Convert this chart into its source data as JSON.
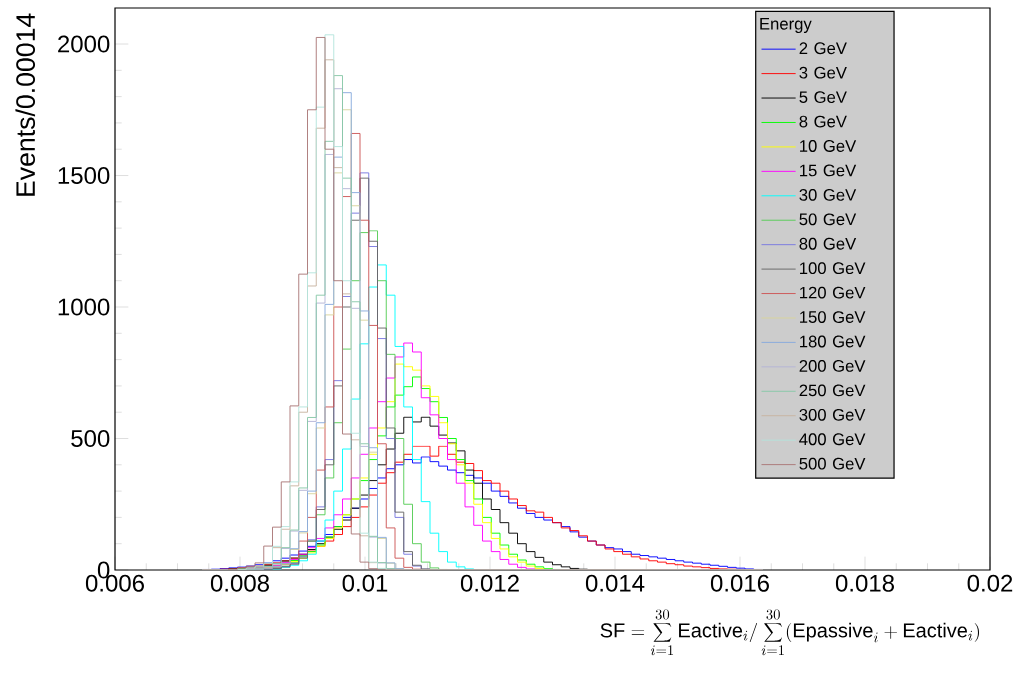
{
  "chart_data": {
    "type": "histogram",
    "xlabel": "\\mathrm{SF} = \\sum_{i=1}^{30}\\mathrm{Eactive}_{i}/\\sum_{i=1}^{30}(\\mathrm{Epassive}_{i}+\\mathrm{Eactive}_{i})",
    "ylabel": "Events/0.00014",
    "legend_title": "Energy",
    "legend": "top right",
    "xlim": [
      0.006,
      0.02
    ],
    "ylim": [
      0,
      2137
    ],
    "xticks": [
      0.006,
      0.008,
      0.01,
      0.012,
      0.014,
      0.016,
      0.018,
      0.02
    ],
    "yticks": [
      0,
      500,
      1000,
      1500,
      2000
    ],
    "bins": [
      0.0074,
      0.00754,
      0.00768,
      0.00782,
      0.00796,
      0.0081,
      0.00824,
      0.00838,
      0.00852,
      0.00866,
      0.0088,
      0.00894,
      0.00908,
      0.00922,
      0.00936,
      0.0095,
      0.00964,
      0.00978,
      0.00992,
      0.01006,
      0.0102,
      0.01034,
      0.01048,
      0.01062,
      0.01076,
      0.0109,
      0.01104,
      0.01118,
      0.01132,
      0.01146,
      0.0116,
      0.01174,
      0.01188,
      0.01202,
      0.01216,
      0.0123,
      0.01244,
      0.01258,
      0.01272,
      0.01286,
      0.013,
      0.01314,
      0.01328,
      0.01342,
      0.01356,
      0.0137,
      0.01384,
      0.01398,
      0.01412,
      0.01426,
      0.0144,
      0.01454,
      0.01468,
      0.01482,
      0.01496,
      0.0151,
      0.01524,
      0.01538,
      0.01552,
      0.01566,
      0.0158,
      0.01594,
      0.01608,
      0.01622,
      0.01636
    ],
    "series": [
      {
        "name": "2 GeV",
        "color": "#0000ff",
        "values": [
          2,
          3,
          5,
          8,
          11,
          15,
          20,
          27,
          35,
          45,
          57,
          72,
          90,
          110,
          135,
          165,
          200,
          235,
          270,
          310,
          350,
          385,
          400,
          420,
          407,
          430,
          412,
          395,
          380,
          370,
          360,
          350,
          330,
          300,
          280,
          255,
          235,
          215,
          200,
          190,
          180,
          165,
          145,
          125,
          110,
          95,
          85,
          80,
          70,
          60,
          55,
          50,
          45,
          40,
          35,
          30,
          26,
          22,
          18,
          14,
          10,
          7,
          4,
          2
        ]
      },
      {
        "name": "3 GeV",
        "color": "#ff0000",
        "values": [
          0,
          1,
          3,
          5,
          8,
          11,
          15,
          20,
          27,
          35,
          45,
          57,
          72,
          90,
          110,
          135,
          165,
          200,
          240,
          285,
          330,
          370,
          410,
          440,
          471,
          471,
          433,
          471,
          440,
          410,
          405,
          378,
          340,
          330,
          300,
          270,
          245,
          225,
          220,
          200,
          180,
          160,
          150,
          130,
          110,
          95,
          80,
          70,
          60,
          50,
          42,
          35,
          30,
          24,
          20,
          15,
          12,
          9,
          6,
          4,
          3,
          2,
          1,
          1
        ]
      },
      {
        "name": "5 GeV",
        "color": "#000000",
        "values": [
          0,
          0,
          2,
          4,
          6,
          9,
          13,
          18,
          25,
          34,
          45,
          60,
          78,
          100,
          125,
          155,
          190,
          235,
          285,
          340,
          400,
          460,
          520,
          581,
          563,
          581,
          547,
          513,
          483,
          453,
          380,
          330,
          270,
          230,
          180,
          140,
          100,
          70,
          48,
          30,
          20,
          12,
          6,
          3,
          1,
          0,
          0,
          0,
          0,
          0,
          0,
          0,
          0,
          0,
          0,
          0,
          0,
          0,
          0,
          0,
          0,
          0,
          0,
          0
        ]
      },
      {
        "name": "8 GeV",
        "color": "#00ff00",
        "values": [
          0,
          0,
          0,
          2,
          4,
          6,
          9,
          13,
          18,
          26,
          36,
          50,
          70,
          95,
          125,
          165,
          210,
          270,
          340,
          420,
          510,
          620,
          665,
          697,
          734,
          690,
          640,
          580,
          500,
          420,
          340,
          270,
          200,
          140,
          95,
          60,
          38,
          22,
          12,
          5,
          2,
          0,
          0,
          0,
          0,
          0,
          0,
          0,
          0,
          0,
          0,
          0,
          0,
          0,
          0,
          0,
          0,
          0,
          0,
          0,
          0,
          0,
          0,
          0
        ]
      },
      {
        "name": "10 GeV",
        "color": "#ffff00",
        "values": [
          0,
          0,
          0,
          0,
          2,
          4,
          7,
          10,
          15,
          22,
          32,
          45,
          65,
          90,
          120,
          160,
          210,
          270,
          350,
          440,
          540,
          640,
          783,
          773,
          760,
          700,
          660,
          560,
          480,
          400,
          330,
          250,
          180,
          120,
          80,
          50,
          30,
          15,
          6,
          2,
          0,
          0,
          0,
          0,
          0,
          0,
          0,
          0,
          0,
          0,
          0,
          0,
          0,
          0,
          0,
          0,
          0,
          0,
          0,
          0,
          0,
          0,
          0,
          0
        ]
      },
      {
        "name": "15 GeV",
        "color": "#ff00ff",
        "values": [
          0,
          0,
          0,
          0,
          2,
          5,
          8,
          12,
          18,
          28,
          40,
          60,
          85,
          120,
          160,
          210,
          270,
          350,
          440,
          540,
          640,
          730,
          810,
          863,
          829,
          655,
          590,
          500,
          420,
          330,
          240,
          170,
          110,
          70,
          40,
          22,
          10,
          4,
          0,
          0,
          0,
          0,
          0,
          0,
          0,
          0,
          0,
          0,
          0,
          0,
          0,
          0,
          0,
          0,
          0,
          0,
          0,
          0,
          0,
          0,
          0,
          0,
          0,
          0
        ]
      },
      {
        "name": "30 GeV",
        "color": "#00ffff",
        "values": [
          0,
          0,
          0,
          0,
          0,
          0,
          0,
          0,
          4,
          10,
          18,
          35,
          60,
          110,
          190,
          300,
          460,
          650,
          860,
          1076,
          1160,
          1045,
          850,
          620,
          420,
          260,
          140,
          70,
          30,
          12,
          4,
          0,
          0,
          0,
          0,
          0,
          0,
          0,
          0,
          0,
          0,
          0,
          0,
          0,
          0,
          0,
          0,
          0,
          0,
          0,
          0,
          0,
          0,
          0,
          0,
          0,
          0,
          0,
          0,
          0,
          0,
          0,
          0,
          0
        ]
      },
      {
        "name": "50 GeV",
        "color": "#55cc55",
        "values": [
          0,
          0,
          0,
          0,
          0,
          0,
          0,
          3,
          8,
          15,
          28,
          55,
          110,
          210,
          350,
          560,
          840,
          1100,
          1283,
          1290,
          1100,
          820,
          500,
          250,
          100,
          30,
          8,
          2,
          0,
          0,
          0,
          0,
          0,
          0,
          0,
          0,
          0,
          0,
          0,
          0,
          0,
          0,
          0,
          0,
          0,
          0,
          0,
          0,
          0,
          0,
          0,
          0,
          0,
          0,
          0,
          0,
          0,
          0,
          0,
          0,
          0,
          0,
          0,
          0
        ]
      },
      {
        "name": "80 GeV",
        "color": "#7777e0",
        "values": [
          0,
          0,
          0,
          0,
          0,
          0,
          0,
          3,
          7,
          13,
          25,
          50,
          115,
          240,
          420,
          720,
          1040,
          1357,
          1510,
          1230,
          880,
          500,
          200,
          60,
          15,
          3,
          0,
          0,
          0,
          0,
          0,
          0,
          0,
          0,
          0,
          0,
          0,
          0,
          0,
          0,
          0,
          0,
          0,
          0,
          0,
          0,
          0,
          0,
          0,
          0,
          0,
          0,
          0,
          0,
          0,
          0,
          0,
          0,
          0,
          0,
          0,
          0,
          0,
          0
        ]
      },
      {
        "name": "100 GeV",
        "color": "#666666",
        "values": [
          0,
          0,
          0,
          0,
          0,
          0,
          0,
          3,
          6,
          12,
          22,
          45,
          110,
          230,
          400,
          700,
          1000,
          1330,
          1490,
          1250,
          920,
          540,
          220,
          70,
          18,
          4,
          0,
          0,
          0,
          0,
          0,
          0,
          0,
          0,
          0,
          0,
          0,
          0,
          0,
          0,
          0,
          0,
          0,
          0,
          0,
          0,
          0,
          0,
          0,
          0,
          0,
          0,
          0,
          0,
          0,
          0,
          0,
          0,
          0,
          0,
          0,
          0,
          0,
          0
        ]
      },
      {
        "name": "120 GeV",
        "color": "#cc5555",
        "values": [
          0,
          0,
          0,
          0,
          0,
          0,
          3,
          6,
          12,
          22,
          45,
          110,
          200,
          380,
          620,
          1000,
          1420,
          1660,
          1330,
          930,
          480,
          160,
          45,
          10,
          3,
          0,
          0,
          0,
          0,
          0,
          0,
          0,
          0,
          0,
          0,
          0,
          0,
          0,
          0,
          0,
          0,
          0,
          0,
          0,
          0,
          0,
          0,
          0,
          0,
          0,
          0,
          0,
          0,
          0,
          0,
          0,
          0,
          0,
          0,
          0,
          0,
          0,
          0,
          0
        ]
      },
      {
        "name": "150 GeV",
        "color": "#d8d49c",
        "values": [
          0,
          0,
          0,
          0,
          0,
          0,
          3,
          7,
          13,
          23,
          78,
          141,
          290,
          540,
          970,
          1510,
          1750,
          1385,
          950,
          448,
          120,
          26,
          5,
          0,
          0,
          0,
          0,
          0,
          0,
          0,
          0,
          0,
          0,
          0,
          0,
          0,
          0,
          0,
          0,
          0,
          0,
          0,
          0,
          0,
          0,
          0,
          0,
          0,
          0,
          0,
          0,
          0,
          0,
          0,
          0,
          0,
          0,
          0,
          0,
          0,
          0,
          0,
          0,
          0
        ]
      },
      {
        "name": "180 GeV",
        "color": "#88aadd",
        "values": [
          0,
          0,
          0,
          0,
          0,
          0,
          3,
          7,
          13,
          24,
          81,
          146,
          300,
          560,
          1010,
          1570,
          1815,
          1435,
          985,
          465,
          124,
          27,
          5,
          0,
          0,
          0,
          0,
          0,
          0,
          0,
          0,
          0,
          0,
          0,
          0,
          0,
          0,
          0,
          0,
          0,
          0,
          0,
          0,
          0,
          0,
          0,
          0,
          0,
          0,
          0,
          0,
          0,
          0,
          0,
          0,
          0,
          0,
          0,
          0,
          0,
          0,
          0,
          0,
          0
        ]
      },
      {
        "name": "200 GeV",
        "color": "#b4b4d6",
        "values": [
          0,
          0,
          0,
          0,
          0,
          3,
          7,
          13,
          24,
          82,
          148,
          303,
          565,
          1015,
          1580,
          1830,
          1450,
          995,
          470,
          125,
          27,
          5,
          0,
          0,
          0,
          0,
          0,
          0,
          0,
          0,
          0,
          0,
          0,
          0,
          0,
          0,
          0,
          0,
          0,
          0,
          0,
          0,
          0,
          0,
          0,
          0,
          0,
          0,
          0,
          0,
          0,
          0,
          0,
          0,
          0,
          0,
          0,
          0,
          0,
          0,
          0,
          0,
          0,
          0
        ]
      },
      {
        "name": "250 GeV",
        "color": "#88c8a8",
        "values": [
          0,
          0,
          0,
          0,
          0,
          3,
          7,
          14,
          25,
          85,
          152,
          312,
          580,
          1045,
          1630,
          1880,
          1490,
          1020,
          480,
          128,
          28,
          5,
          0,
          0,
          0,
          0,
          0,
          0,
          0,
          0,
          0,
          0,
          0,
          0,
          0,
          0,
          0,
          0,
          0,
          0,
          0,
          0,
          0,
          0,
          0,
          0,
          0,
          0,
          0,
          0,
          0,
          0,
          0,
          0,
          0,
          0,
          0,
          0,
          0,
          0,
          0,
          0,
          0,
          0
        ]
      },
      {
        "name": "300 GeV",
        "color": "#c8b4a0",
        "values": [
          0,
          0,
          0,
          0,
          3,
          8,
          14,
          25,
          85,
          155,
          320,
          600,
          1080,
          1680,
          1940,
          1530,
          1050,
          495,
          130,
          28,
          5,
          0,
          0,
          0,
          0,
          0,
          0,
          0,
          0,
          0,
          0,
          0,
          0,
          0,
          0,
          0,
          0,
          0,
          0,
          0,
          0,
          0,
          0,
          0,
          0,
          0,
          0,
          0,
          0,
          0,
          0,
          0,
          0,
          0,
          0,
          0,
          0,
          0,
          0,
          0,
          0,
          0,
          0,
          0
        ]
      },
      {
        "name": "400 GeV",
        "color": "#b4e4dc",
        "values": [
          0,
          0,
          0,
          0,
          3,
          8,
          15,
          27,
          90,
          165,
          335,
          620,
          1130,
          1760,
          2035,
          1610,
          1100,
          520,
          140,
          30,
          6,
          0,
          0,
          0,
          0,
          0,
          0,
          0,
          0,
          0,
          0,
          0,
          0,
          0,
          0,
          0,
          0,
          0,
          0,
          0,
          0,
          0,
          0,
          0,
          0,
          0,
          0,
          0,
          0,
          0,
          0,
          0,
          0,
          0,
          0,
          0,
          0,
          0,
          0,
          0,
          0,
          0,
          0,
          0
        ]
      },
      {
        "name": "500 GeV",
        "color": "#aa7777",
        "values": [
          0,
          0,
          0,
          3,
          8,
          15,
          27,
          91,
          163,
          335,
          624,
          1125,
          1750,
          2025,
          1600,
          1100,
          517,
          137,
          30,
          5,
          0,
          0,
          0,
          0,
          0,
          0,
          0,
          0,
          0,
          0,
          0,
          0,
          0,
          0,
          0,
          0,
          0,
          0,
          0,
          0,
          0,
          0,
          0,
          0,
          0,
          0,
          0,
          0,
          0,
          0,
          0,
          0,
          0,
          0,
          0,
          0,
          0,
          0,
          0,
          0,
          0,
          0,
          0,
          0
        ]
      }
    ]
  }
}
